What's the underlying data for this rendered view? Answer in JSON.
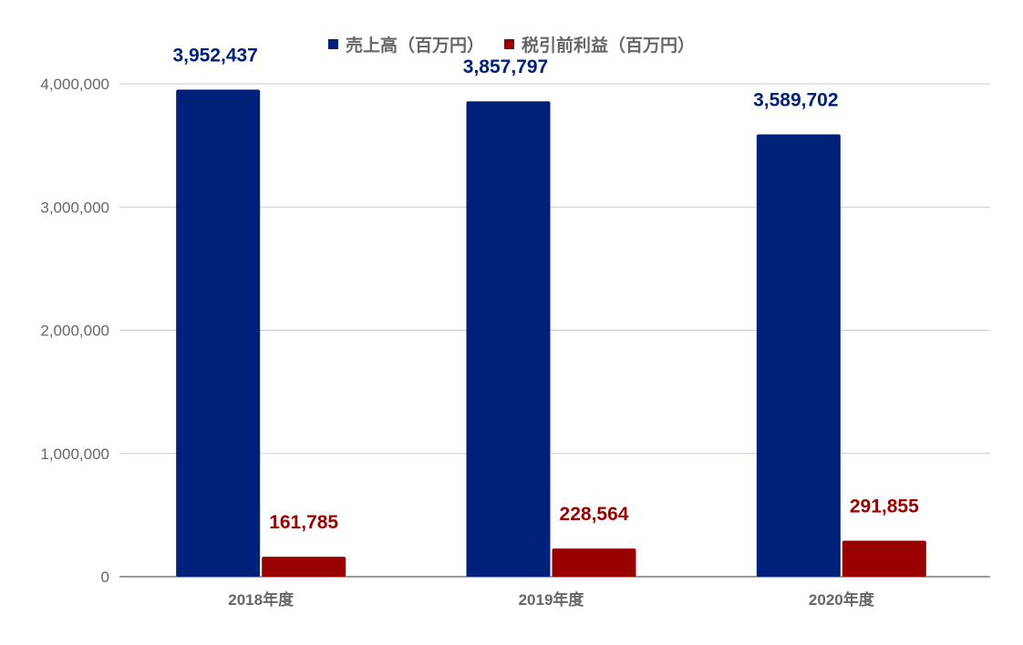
{
  "chart_data": {
    "type": "bar",
    "categories": [
      "2018年度",
      "2019年度",
      "2020年度"
    ],
    "series": [
      {
        "name": "売上高（百万円）",
        "values": [
          3952437,
          3857797,
          3589702
        ],
        "color": "#00217a",
        "labels": [
          "3,952,437",
          "3,857,797",
          "3,589,702"
        ]
      },
      {
        "name": "税引前利益（百万円）",
        "values": [
          161785,
          228564,
          291855
        ],
        "color": "#990000",
        "labels": [
          "161,785",
          "228,564",
          "291,855"
        ]
      }
    ],
    "y_ticks": [
      0,
      1000000,
      2000000,
      3000000,
      4000000
    ],
    "y_tick_labels": [
      "0",
      "1,000,000",
      "2,000,000",
      "3,000,000",
      "4,000,000"
    ],
    "ylim": [
      0,
      4000000
    ],
    "grid": true,
    "legend_position": "top-center",
    "title": "",
    "xlabel": "",
    "ylabel": "",
    "gridline_color": "#cccccc",
    "axis_text_color": "#666666"
  }
}
